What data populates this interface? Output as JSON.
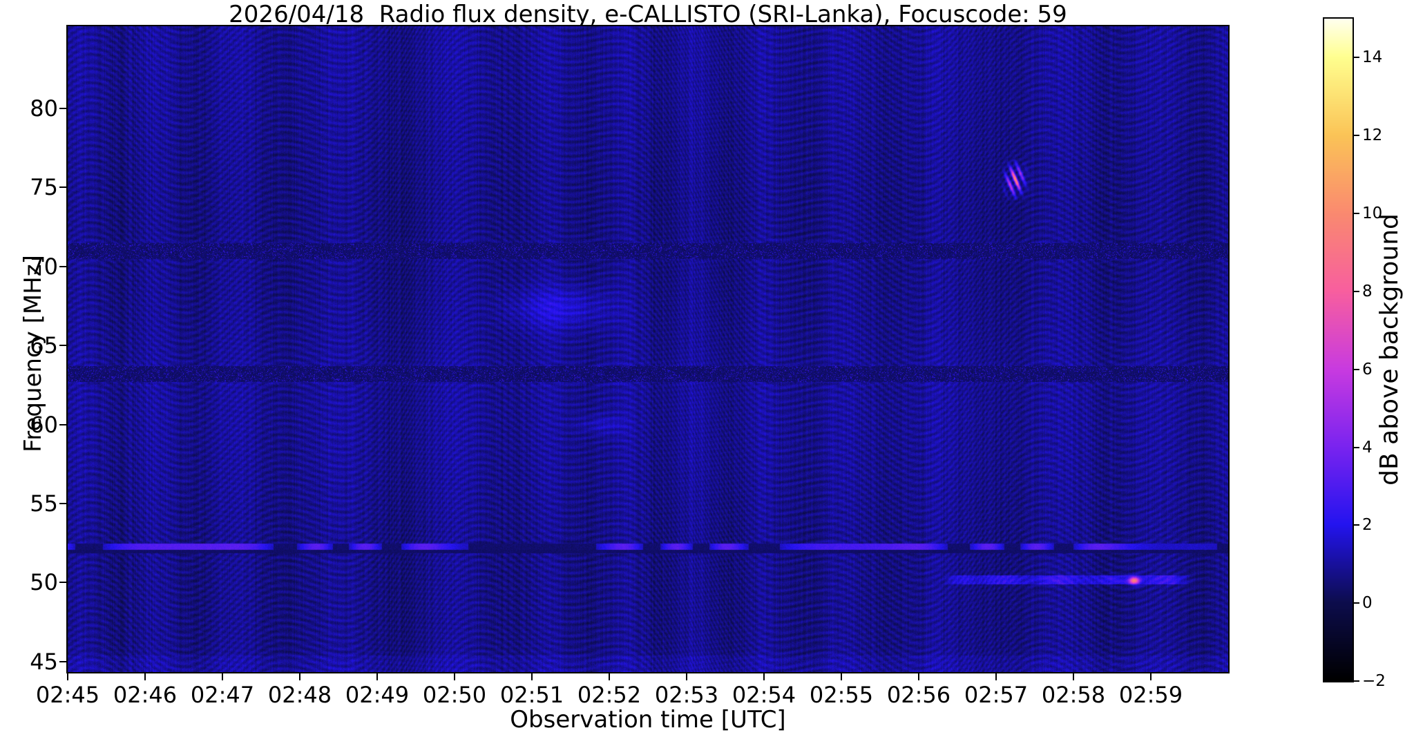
{
  "figure": {
    "background_color": "#ffffff"
  },
  "chart_data": {
    "type": "heatmap",
    "title": "2026/04/18  Radio flux density, e-CALLISTO (SRI-Lanka), Focuscode: 59",
    "xlabel": "Observation time [UTC]",
    "ylabel": "Frequency [MHz]",
    "colorbar_label": "dB above background",
    "x_tick_labels": [
      "02:45",
      "02:46",
      "02:47",
      "02:48",
      "02:49",
      "02:50",
      "02:51",
      "02:52",
      "02:53",
      "02:54",
      "02:55",
      "02:56",
      "02:57",
      "02:58",
      "02:59"
    ],
    "x_range": {
      "start_utc": "02:45",
      "end_utc": "03:00",
      "minutes": 15
    },
    "y_ticks_mhz": [
      45,
      50,
      55,
      60,
      65,
      70,
      75,
      80
    ],
    "y_range_mhz": [
      44.34,
      85.2
    ],
    "colorbar_ticks_db": [
      -2,
      0,
      2,
      4,
      6,
      8,
      10,
      12,
      14
    ],
    "colorbar_range_db": [
      -2,
      15
    ],
    "grid": false,
    "colormap_name": "gnuplot2-like (black-blue-violet-magenta-pink-orange-yellow-white)",
    "colormap_stops": [
      [
        -2,
        "#000000"
      ],
      [
        0,
        "#0d0d4d"
      ],
      [
        2,
        "#2414ef"
      ],
      [
        4,
        "#7a24f0"
      ],
      [
        6,
        "#c93be0"
      ],
      [
        8,
        "#f85f9f"
      ],
      [
        10,
        "#fa8a70"
      ],
      [
        12,
        "#fbc457"
      ],
      [
        14,
        "#ffff8f"
      ],
      [
        15,
        "#fffff0"
      ]
    ],
    "background_level_db": 0.8,
    "moire_contrast_db": 0.6,
    "features": [
      {
        "kind": "rfi-band",
        "f_center": 71.0,
        "f_width": 1.0,
        "strength": 1.0,
        "description": "dark speckled horizontal interference band across full duration"
      },
      {
        "kind": "rfi-band",
        "f_center": 63.2,
        "f_width": 1.0,
        "strength": 1.0,
        "description": "dark speckled horizontal interference band across full duration"
      },
      {
        "kind": "bright-line",
        "f_center": 52.3,
        "f_width": 0.4,
        "db": 2.5,
        "dark_edge_f": 52.0,
        "description": "intermittent bright channel with dark lower edge, full duration"
      },
      {
        "kind": "bright-stripe",
        "f_center": 50.2,
        "f_width": 0.55,
        "t_start": 11.3,
        "t_end": 14.6,
        "db": 2.0,
        "description": "enhanced blue stripe from ~02:56:20 to ~02:59:35"
      },
      {
        "kind": "point-burst",
        "t": 13.78,
        "f": 50.15,
        "db": 8.0,
        "t_sigma": 0.045,
        "f_sigma": 0.16,
        "description": "compact bright spot near 02:58:47 at 50.2 MHz"
      },
      {
        "kind": "zigzag-burst",
        "t": 12.24,
        "f": 75.5,
        "t_sigma": 0.07,
        "f_sigma": 0.55,
        "db_peak": 9.5,
        "description": "narrowband magenta zigzag burst near 02:57:14 at 75.5 MHz"
      },
      {
        "kind": "diffuse-patch",
        "t": 6.35,
        "f": 67.4,
        "t_width": 1.1,
        "f_width": 2.2,
        "db": 1.0,
        "description": "faint diffuse brightening near 02:51 at 67-68 MHz"
      },
      {
        "kind": "diffuse-patch",
        "t": 6.9,
        "f": 60.0,
        "t_width": 0.5,
        "f_width": 1.0,
        "db": 0.6,
        "description": "very faint patch near 02:52 at 60 MHz"
      },
      {
        "kind": "bottom-band",
        "f_below": 45.4,
        "db": 0.25,
        "description": "slightly brighter noisy band along lower edge"
      }
    ]
  }
}
